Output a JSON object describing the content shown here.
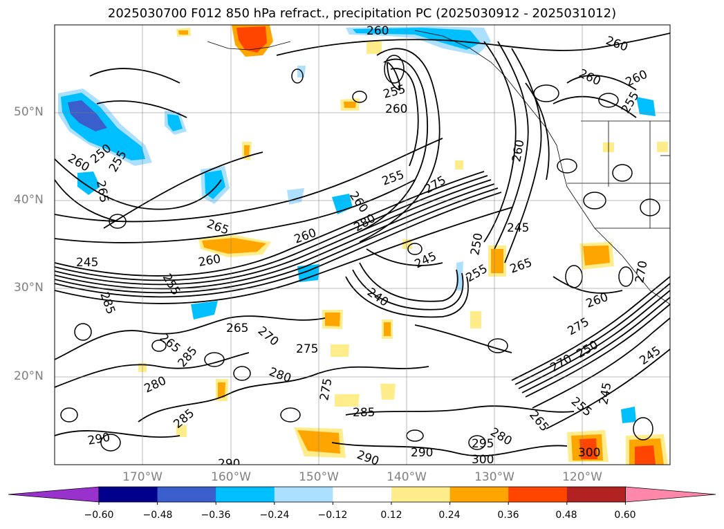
{
  "title": "2025030700 F012 850 hPa refract., precipitation PC (2025030912 - 2025031012)",
  "lat_labels": [
    "50°N",
    "40°N",
    "30°N",
    "20°N"
  ],
  "lon_labels": [
    "170°W",
    "160°W",
    "150°W",
    "140°W",
    "130°W",
    "120°W"
  ],
  "contour_labels": [
    "260",
    "260",
    "260",
    "260",
    "255",
    "255",
    "260",
    "250",
    "255",
    "260",
    "265",
    "260",
    "275",
    "280",
    "260",
    "255",
    "265",
    "260",
    "245",
    "250",
    "245",
    "245",
    "255",
    "265",
    "260",
    "270",
    "255",
    "285",
    "265",
    "265",
    "270",
    "275",
    "280",
    "285",
    "275",
    "260",
    "250",
    "270",
    "245",
    "275",
    "280",
    "285",
    "255",
    "265",
    "290",
    "295",
    "290",
    "300",
    "280",
    "245",
    "240",
    "285",
    "300",
    "290",
    "290"
  ],
  "colorbar": {
    "ticks": [
      "−0.60",
      "−0.48",
      "−0.36",
      "−0.24",
      "−0.12",
      "0.12",
      "0.24",
      "0.36",
      "0.48",
      "0.60"
    ],
    "colors": [
      "#9932CC",
      "#00008B",
      "#3A5FCD",
      "#00BFFF",
      "#ADDFFF",
      "#FFFFFF",
      "#FFEC8B",
      "#FFA500",
      "#FF4500",
      "#B22222",
      "#FF88AA"
    ]
  },
  "fill_colors": {
    "light_blue": "#ADDFFF",
    "blue": "#00BFFF",
    "mid_blue": "#3A5FCD",
    "yellow": "#FFEC8B",
    "orange": "#FFA500",
    "red": "#FF4500",
    "dark_red": "#B22222"
  }
}
